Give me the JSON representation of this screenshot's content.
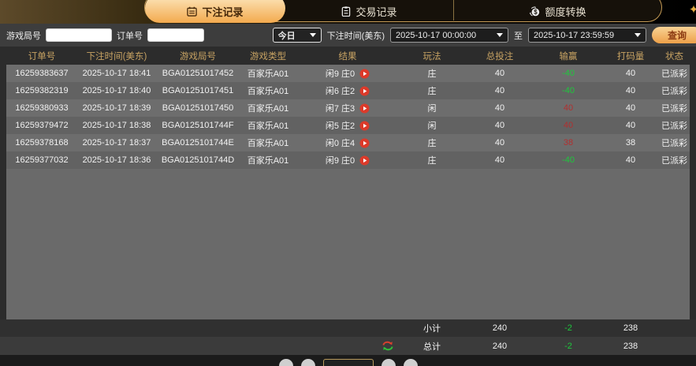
{
  "tabs": [
    {
      "label": "下注记录",
      "icon": "calendar-icon",
      "active": true
    },
    {
      "label": "交易记录",
      "icon": "clipboard-icon",
      "active": false
    },
    {
      "label": "额度转换",
      "icon": "coin-transfer-icon",
      "active": false
    }
  ],
  "filters": {
    "game_round_label": "游戏局号",
    "game_round_value": "",
    "order_no_label": "订单号",
    "order_no_value": "",
    "period_selected": "今日",
    "bet_time_label": "下注时间(美东)",
    "date_from": "2025-10-17 00:00:00",
    "to_label": "至",
    "date_to": "2025-10-17 23:59:59",
    "query_button": "查询"
  },
  "table": {
    "columns": [
      "订单号",
      "下注时间(美东)",
      "游戏局号",
      "游戏类型",
      "结果",
      "玩法",
      "总投注",
      "输赢",
      "打码量",
      "状态"
    ],
    "rows": [
      {
        "order_no": "16259383637",
        "bet_time": "2025-10-17 18:41",
        "round": "BGA01251017452",
        "game_type": "百家乐A01",
        "result": "闲9 庄0",
        "play": "庄",
        "total_bet": "40",
        "win_loss": "-40",
        "win_loss_color": "green",
        "turnover": "40",
        "status": "已派彩"
      },
      {
        "order_no": "16259382319",
        "bet_time": "2025-10-17 18:40",
        "round": "BGA01251017451",
        "game_type": "百家乐A01",
        "result": "闲6 庄2",
        "play": "庄",
        "total_bet": "40",
        "win_loss": "-40",
        "win_loss_color": "green",
        "turnover": "40",
        "status": "已派彩"
      },
      {
        "order_no": "16259380933",
        "bet_time": "2025-10-17 18:39",
        "round": "BGA01251017450",
        "game_type": "百家乐A01",
        "result": "闲7 庄3",
        "play": "闲",
        "total_bet": "40",
        "win_loss": "40",
        "win_loss_color": "red",
        "turnover": "40",
        "status": "已派彩"
      },
      {
        "order_no": "16259379472",
        "bet_time": "2025-10-17 18:38",
        "round": "BGA0125101744F",
        "game_type": "百家乐A01",
        "result": "闲5 庄2",
        "play": "闲",
        "total_bet": "40",
        "win_loss": "40",
        "win_loss_color": "red",
        "turnover": "40",
        "status": "已派彩"
      },
      {
        "order_no": "16259378168",
        "bet_time": "2025-10-17 18:37",
        "round": "BGA0125101744E",
        "game_type": "百家乐A01",
        "result": "闲0 庄4",
        "play": "庄",
        "total_bet": "40",
        "win_loss": "38",
        "win_loss_color": "red",
        "turnover": "38",
        "status": "已派彩"
      },
      {
        "order_no": "16259377032",
        "bet_time": "2025-10-17 18:36",
        "round": "BGA0125101744D",
        "game_type": "百家乐A01",
        "result": "闲9 庄0",
        "play": "庄",
        "total_bet": "40",
        "win_loss": "-40",
        "win_loss_color": "green",
        "turnover": "40",
        "status": "已派彩"
      }
    ],
    "subtotal": {
      "label": "小计",
      "total_bet": "240",
      "win_loss": "-2",
      "turnover": "238"
    },
    "total": {
      "label": "总计",
      "total_bet": "240",
      "win_loss": "-2",
      "turnover": "238"
    }
  },
  "colors": {
    "accent_gold": "#c49a55",
    "tab_active_gradient_top": "#fdeac3",
    "tab_active_gradient_bottom": "#f3aa4e",
    "win_red": "#b22f2f",
    "loss_green": "#1ec83c",
    "play_icon_red": "#dc3a2a"
  }
}
